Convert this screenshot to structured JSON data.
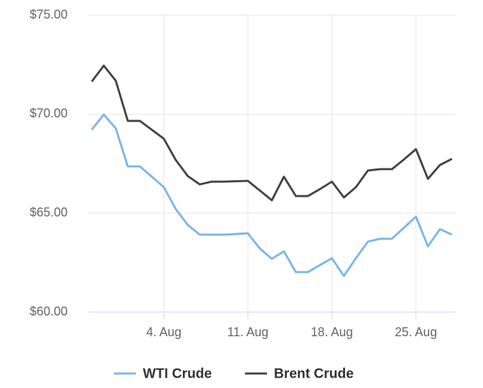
{
  "chart_data": {
    "type": "line",
    "x": [
      null,
      null,
      null,
      null,
      null,
      null,
      "4. Aug",
      null,
      null,
      null,
      null,
      null,
      null,
      "11. Aug",
      null,
      null,
      null,
      null,
      null,
      null,
      "18. Aug",
      null,
      null,
      null,
      null,
      null,
      null,
      "25. Aug",
      null,
      null,
      null
    ],
    "series": [
      {
        "name": "WTI Crude",
        "color": "#7cb5ec",
        "values": [
          69.21,
          69.98,
          69.28,
          67.36,
          67.36,
          66.84,
          66.31,
          65.2,
          64.4,
          63.91,
          63.91,
          63.91,
          63.94,
          63.98,
          63.21,
          62.69,
          63.07,
          62.02,
          62.02,
          62.37,
          62.72,
          61.82,
          62.72,
          63.56,
          63.7,
          63.7,
          64.26,
          64.82,
          63.32,
          64.19,
          63.91
        ]
      },
      {
        "name": "Brent Crude",
        "color": "#434348",
        "values": [
          71.65,
          72.45,
          71.69,
          69.66,
          69.66,
          69.21,
          68.76,
          67.68,
          66.87,
          66.45,
          66.59,
          66.59,
          66.61,
          66.63,
          66.14,
          65.65,
          66.84,
          65.86,
          65.86,
          66.21,
          66.59,
          65.79,
          66.31,
          67.15,
          67.22,
          67.22,
          67.71,
          68.23,
          66.73,
          67.43,
          67.74
        ]
      }
    ],
    "ylim": [
      60,
      75
    ],
    "yticks": [
      {
        "value": 60,
        "label": "$60.00"
      },
      {
        "value": 65,
        "label": "$65.00"
      },
      {
        "value": 70,
        "label": "$70.00"
      },
      {
        "value": 75,
        "label": "$75.00"
      }
    ],
    "grid": true
  }
}
